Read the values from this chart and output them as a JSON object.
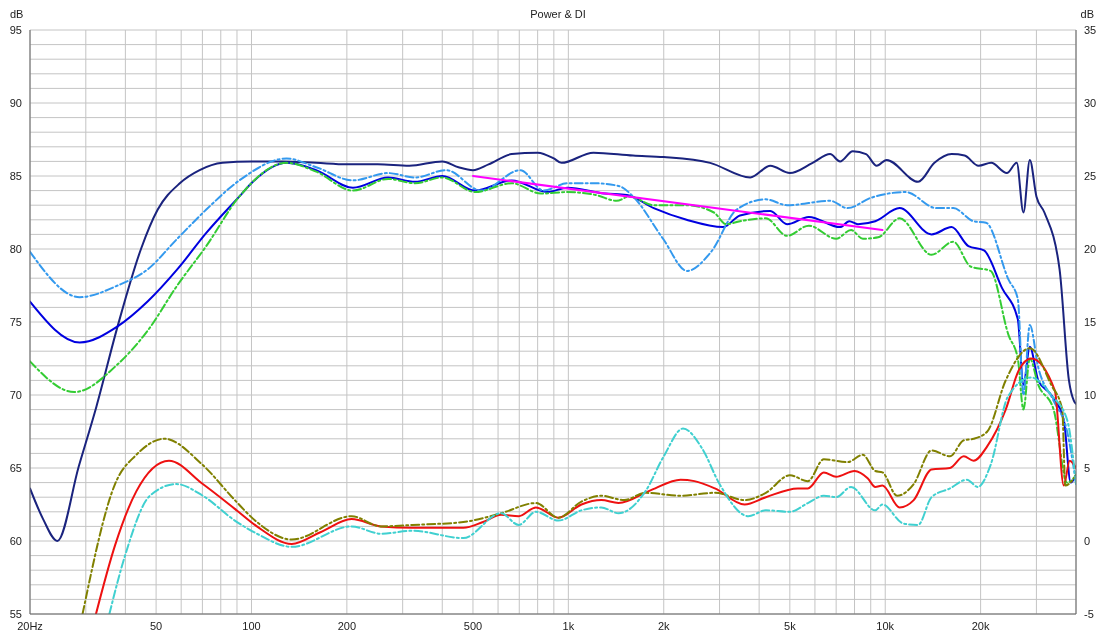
{
  "chart_data": {
    "type": "line",
    "title": "Power & DI",
    "ylabel": "dB",
    "y2label": "dB",
    "xlim": [
      20,
      40000
    ],
    "ylim": [
      55,
      95
    ],
    "y2lim": [
      -5,
      35
    ],
    "xticks": [
      {
        "value": 20,
        "label": "20Hz"
      },
      {
        "value": 30,
        "label": null
      },
      {
        "value": 40,
        "label": null
      },
      50,
      {
        "value": 60,
        "label": null
      },
      {
        "value": 70,
        "label": null
      },
      {
        "value": 80,
        "label": null
      },
      {
        "value": 90,
        "label": null
      },
      100,
      200,
      {
        "value": 300,
        "label": null
      },
      {
        "value": 400,
        "label": null
      },
      500,
      {
        "value": 600,
        "label": null
      },
      {
        "value": 700,
        "label": null
      },
      {
        "value": 800,
        "label": null
      },
      {
        "value": 900,
        "label": null
      },
      {
        "value": 1000,
        "label": "1k"
      },
      {
        "value": 2000,
        "label": "2k"
      },
      {
        "value": 3000,
        "label": null
      },
      {
        "value": 4000,
        "label": null
      },
      {
        "value": 5000,
        "label": "5k"
      },
      {
        "value": 6000,
        "label": null
      },
      {
        "value": 7000,
        "label": null
      },
      {
        "value": 8000,
        "label": null
      },
      {
        "value": 9000,
        "label": null
      },
      {
        "value": 10000,
        "label": "10k"
      },
      {
        "value": 20000,
        "label": "20k"
      },
      {
        "value": 30000,
        "label": null
      }
    ],
    "yticks": [
      55,
      {
        "value": 56,
        "label": null
      },
      {
        "value": 57,
        "label": null
      },
      {
        "value": 58,
        "label": null
      },
      {
        "value": 59,
        "label": null
      },
      60,
      {
        "value": 61,
        "label": null
      },
      {
        "value": 62,
        "label": null
      },
      {
        "value": 63,
        "label": null
      },
      {
        "value": 64,
        "label": null
      },
      65,
      {
        "value": 66,
        "label": null
      },
      {
        "value": 67,
        "label": null
      },
      {
        "value": 68,
        "label": null
      },
      {
        "value": 69,
        "label": null
      },
      70,
      {
        "value": 71,
        "label": null
      },
      {
        "value": 72,
        "label": null
      },
      {
        "value": 73,
        "label": null
      },
      {
        "value": 74,
        "label": null
      },
      75,
      {
        "value": 76,
        "label": null
      },
      {
        "value": 77,
        "label": null
      },
      {
        "value": 78,
        "label": null
      },
      {
        "value": 79,
        "label": null
      },
      80,
      {
        "value": 81,
        "label": null
      },
      {
        "value": 82,
        "label": null
      },
      {
        "value": 83,
        "label": null
      },
      {
        "value": 84,
        "label": null
      },
      85,
      {
        "value": 86,
        "label": null
      },
      {
        "value": 87,
        "label": null
      },
      {
        "value": 88,
        "label": null
      },
      {
        "value": 89,
        "label": null
      },
      90,
      {
        "value": 91,
        "label": null
      },
      {
        "value": 92,
        "label": null
      },
      {
        "value": 93,
        "label": null
      },
      {
        "value": 94,
        "label": null
      },
      95
    ],
    "y2ticks": [
      -5,
      0,
      5,
      10,
      15,
      20,
      25,
      30,
      35
    ],
    "log": "x",
    "grid": true,
    "marker": "none",
    "series": [
      {
        "type": "line",
        "color": "#1a237e",
        "line_style": "solid",
        "x": [
          20,
          22,
          24.4,
          28.5,
          32.4,
          37.8,
          44.8,
          50.6,
          59.4,
          68.6,
          81,
          100,
          125,
          160,
          200,
          250,
          315,
          400,
          450,
          500,
          560,
          663,
          800,
          900,
          951,
          1200,
          1600,
          2000,
          2800,
          3750,
          4340,
          5000,
          5900,
          6700,
          7200,
          7900,
          8700,
          9400,
          10100,
          12700,
          14300,
          16200,
          17800,
          19700,
          21600,
          24200,
          26000,
          27300,
          28600,
          30000,
          31800,
          35500,
          38000,
          39400,
          40000
        ],
        "values": [
          63.6,
          61.5,
          60.0,
          65.1,
          69.2,
          74.7,
          80.0,
          82.7,
          84.5,
          85.4,
          85.9,
          86.0,
          86.0,
          85.9,
          85.8,
          85.8,
          85.7,
          86.0,
          85.6,
          85.4,
          85.8,
          86.5,
          86.6,
          86.2,
          85.9,
          86.6,
          86.4,
          86.3,
          85.9,
          84.9,
          85.7,
          85.2,
          85.9,
          86.5,
          86.0,
          86.7,
          86.5,
          85.7,
          86.1,
          84.6,
          85.9,
          86.5,
          86.4,
          85.7,
          85.9,
          85.2,
          85.9,
          82.5,
          86.1,
          83.6,
          82.5,
          78.6,
          71,
          69.6,
          69.4
        ]
      },
      {
        "type": "line",
        "color": "#0000e0",
        "line_style": "solid",
        "x": [
          20,
          28.7,
          37.8,
          47,
          58.3,
          72,
          91.6,
          101,
          129,
          160,
          209,
          270,
          328,
          400,
          508,
          663,
          858,
          993,
          1300,
          1530,
          1860,
          2360,
          3080,
          3480,
          4340,
          4900,
          5740,
          7200,
          7700,
          8200,
          9300,
          11100,
          14000,
          16200,
          18300,
          20500,
          23400,
          26200,
          27300,
          28600,
          30400,
          33400,
          36600,
          38500,
          40000
        ],
        "values": [
          76.4,
          73.6,
          74.7,
          76.4,
          78.6,
          81.1,
          83.6,
          84.6,
          85.9,
          85.4,
          84.2,
          84.9,
          84.6,
          85.0,
          84.0,
          84.7,
          83.9,
          84.2,
          83.8,
          83.7,
          82.8,
          82.0,
          81.5,
          82.3,
          82.6,
          81.7,
          82.2,
          81.5,
          81.9,
          81.7,
          81.9,
          82.8,
          81.0,
          81.5,
          80.2,
          79.9,
          77.3,
          75.2,
          70.7,
          73.3,
          71.0,
          70.0,
          68.3,
          64.0,
          64.5
        ]
      },
      {
        "type": "line",
        "color": "#3399ee",
        "line_style": "dashed",
        "x": [
          20,
          28.7,
          37.8,
          47,
          58.3,
          72,
          91.6,
          129,
          160,
          209,
          270,
          328,
          412,
          530,
          706,
          835,
          993,
          1220,
          1450,
          1600,
          1990,
          2370,
          2820,
          3400,
          4200,
          4900,
          6700,
          7600,
          9000,
          11600,
          14500,
          16400,
          19000,
          20800,
          24500,
          26200,
          27300,
          28600,
          30400,
          34000,
          37500,
          40000
        ],
        "values": [
          79.8,
          76.7,
          77.5,
          78.6,
          80.7,
          82.7,
          84.7,
          86.2,
          85.6,
          84.7,
          85.2,
          84.9,
          85.4,
          84.0,
          85.4,
          84.0,
          84.5,
          84.5,
          84.3,
          83.6,
          80.7,
          78.5,
          79.8,
          82.7,
          83.4,
          83.0,
          83.3,
          82.8,
          83.5,
          83.9,
          82.8,
          82.8,
          81.9,
          81.8,
          77.9,
          76.6,
          70.0,
          74.8,
          71.9,
          69.6,
          67.5,
          64.0
        ]
      },
      {
        "type": "line",
        "color": "#33cc33",
        "line_style": "dashed",
        "x": [
          20,
          27.6,
          37.8,
          47,
          58.3,
          72,
          91.6,
          129,
          160,
          209,
          270,
          328,
          400,
          508,
          663,
          820,
          993,
          1220,
          1420,
          1560,
          1860,
          2360,
          2880,
          3150,
          3480,
          4200,
          4900,
          5740,
          7000,
          7800,
          8500,
          9500,
          11100,
          14000,
          16400,
          18600,
          21500,
          24500,
          26200,
          27300,
          28600,
          30400,
          34000,
          37500,
          40000
        ],
        "values": [
          72.3,
          70.2,
          72.1,
          74.4,
          77.5,
          80.2,
          83.6,
          85.9,
          85.3,
          84.0,
          84.8,
          84.5,
          84.9,
          83.9,
          84.5,
          83.8,
          83.9,
          83.7,
          83.3,
          83.6,
          83.0,
          83.0,
          82.5,
          81.7,
          81.9,
          82.1,
          80.9,
          81.6,
          80.7,
          81.3,
          80.7,
          80.8,
          82.1,
          79.6,
          80.5,
          78.8,
          78.5,
          74.1,
          72.5,
          69.0,
          72.5,
          70.7,
          69.0,
          64.0,
          64.5
        ]
      },
      {
        "type": "line",
        "color": "#ff00ff",
        "line_style": "solid",
        "x": [
          500,
          9800
        ],
        "values": [
          85.0,
          81.3
        ]
      },
      {
        "type": "line",
        "color": "#ee1111",
        "line_style": "solid",
        "axis": "y2",
        "x": [
          32.3,
          37.1,
          43.3,
          54.9,
          70.2,
          88.6,
          104,
          134,
          165,
          207,
          256,
          322,
          466,
          538,
          613,
          697,
          790,
          930,
          1100,
          1270,
          1440,
          1830,
          2260,
          2500,
          2900,
          3600,
          4200,
          5300,
          5700,
          6400,
          7000,
          8000,
          8800,
          9300,
          9800,
          11100,
          12300,
          14000,
          16000,
          17700,
          19000,
          21000,
          24000,
          26400,
          28900,
          34300,
          36600,
          38200,
          40000
        ],
        "values": [
          -5,
          -0.3,
          3.4,
          5.5,
          3.9,
          2.2,
          1.0,
          -0.2,
          0.6,
          1.5,
          1.0,
          0.9,
          0.9,
          1.3,
          1.8,
          1.7,
          2.3,
          1.6,
          2.5,
          2.8,
          2.6,
          3.5,
          4.2,
          4.1,
          3.6,
          2.5,
          3.0,
          3.6,
          3.6,
          4.7,
          4.4,
          4.8,
          4.3,
          3.7,
          3.8,
          2.3,
          2.8,
          4.9,
          5.0,
          5.8,
          5.5,
          6.5,
          9,
          11.7,
          12.5,
          10.3,
          3.8,
          5.5,
          5.0
        ]
      },
      {
        "type": "line",
        "color": "#808000",
        "line_style": "dashed",
        "axis": "y2",
        "x": [
          29.3,
          37.1,
          43.3,
          53.1,
          70.2,
          88.6,
          104,
          134,
          207,
          256,
          322,
          466,
          613,
          790,
          930,
          1100,
          1270,
          1500,
          1750,
          2260,
          2900,
          3600,
          4200,
          5000,
          5700,
          6400,
          7600,
          8500,
          9300,
          9800,
          10900,
          12300,
          14000,
          16000,
          17700,
          19000,
          21000,
          24000,
          28600,
          33400,
          36200,
          37000,
          40000
        ],
        "values": [
          -5,
          3.9,
          5.9,
          7.0,
          5.2,
          2.8,
          1.3,
          0.1,
          1.7,
          1.0,
          1.1,
          1.3,
          1.9,
          2.6,
          1.6,
          2.7,
          3.1,
          2.8,
          3.3,
          3.1,
          3.3,
          2.8,
          3.3,
          4.5,
          4.1,
          5.6,
          5.4,
          5.9,
          4.8,
          4.7,
          3.1,
          3.9,
          6.2,
          5.8,
          6.9,
          7.0,
          7.5,
          11,
          13.2,
          10.7,
          9.0,
          3.8,
          4.5
        ]
      },
      {
        "type": "line",
        "color": "#40d0d0",
        "line_style": "dashed",
        "axis": "y2",
        "x": [
          35.6,
          39.9,
          47.8,
          57.9,
          70.2,
          88.6,
          104,
          134,
          207,
          256,
          322,
          466,
          613,
          697,
          790,
          930,
          1100,
          1270,
          1440,
          1750,
          2000,
          2300,
          2650,
          3000,
          3700,
          4200,
          5000,
          5700,
          6400,
          7000,
          7800,
          9300,
          9800,
          11400,
          12700,
          14000,
          16000,
          18100,
          19600,
          21500,
          24400,
          28900,
          33400,
          37500,
          40000
        ],
        "values": [
          -5,
          -1.0,
          3.1,
          3.9,
          3.1,
          1.4,
          0.5,
          -0.4,
          1.0,
          0.5,
          0.7,
          0.2,
          1.9,
          1.1,
          2.0,
          1.4,
          2.1,
          2.3,
          1.9,
          3.4,
          5.8,
          7.7,
          6.3,
          3.9,
          1.7,
          2.1,
          2.0,
          2.6,
          3.1,
          3.0,
          3.7,
          2.1,
          2.5,
          1.2,
          1.1,
          3.0,
          3.6,
          4.2,
          3.7,
          5.2,
          9.9,
          11.2,
          10.0,
          8.3,
          3.9
        ]
      }
    ]
  }
}
